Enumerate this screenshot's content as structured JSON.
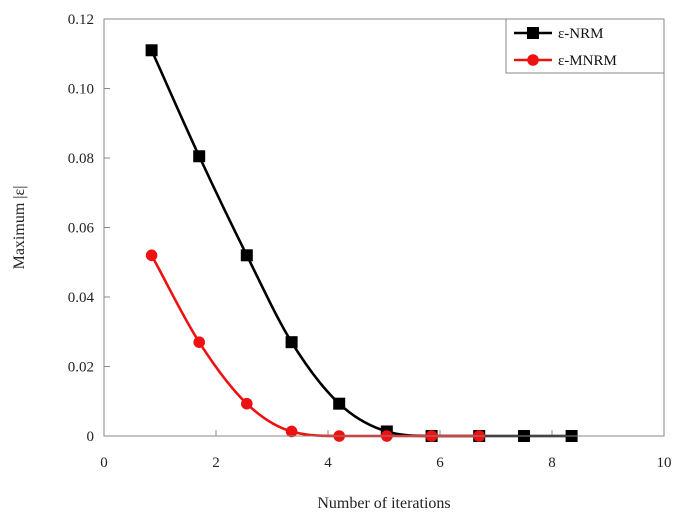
{
  "chart_data": {
    "type": "line",
    "xlabel": "Number of iterations",
    "ylabel": "Maximum |ε|",
    "xlim": [
      0,
      10
    ],
    "ylim": [
      0,
      0.12
    ],
    "xticks": [
      "0",
      "2",
      "4",
      "6",
      "8",
      "10"
    ],
    "yticks": [
      "0",
      "0.02",
      "0.04",
      "0.06",
      "0.08",
      "0.10",
      "0.12"
    ],
    "grid": false,
    "legend_position": "top-right",
    "series": [
      {
        "name": "ε-NRM",
        "color": "#000000",
        "marker": "square",
        "x": [
          0.85,
          1.7,
          2.55,
          3.35,
          4.2,
          5.05,
          5.85,
          6.7,
          7.5,
          8.35
        ],
        "y": [
          0.111,
          0.0805,
          0.052,
          0.027,
          0.0093,
          0.0013,
          0.0,
          0.0,
          0.0,
          0.0
        ]
      },
      {
        "name": "ε-MNRM",
        "color": "#ee1111",
        "marker": "circle",
        "x": [
          0.85,
          1.7,
          2.55,
          3.35,
          4.2,
          5.05,
          5.85,
          6.7
        ],
        "y": [
          0.052,
          0.027,
          0.0093,
          0.0013,
          0.0,
          0.0,
          0.0,
          0.0
        ]
      }
    ]
  }
}
